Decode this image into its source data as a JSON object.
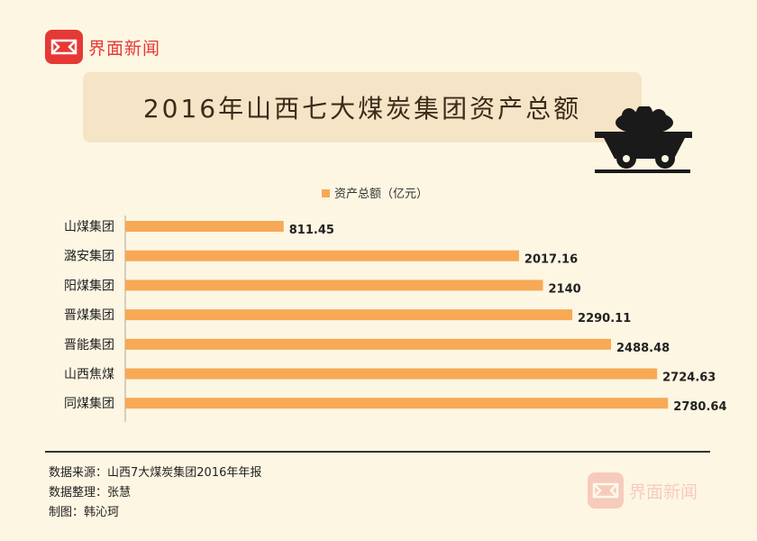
{
  "brand": {
    "name": "界面新闻"
  },
  "colors": {
    "bar": "#f7a955",
    "brand": "#e53935"
  },
  "icons": {
    "logo": "jiemian-logo-icon",
    "cart": "coal-cart-icon"
  },
  "chart_data": {
    "type": "bar",
    "orientation": "horizontal",
    "title": "2016年山西七大煤炭集团资产总额",
    "legend": {
      "label": "资产总额（亿元）",
      "position": "top"
    },
    "categories": [
      "山煤集团",
      "潞安集团",
      "阳煤集团",
      "晋煤集团",
      "晋能集团",
      "山西焦煤",
      "同煤集团"
    ],
    "values": [
      811.45,
      2017.16,
      2140,
      2290.11,
      2488.48,
      2724.63,
      2780.64
    ],
    "data_labels": [
      "811.45",
      "2017.16",
      "2140",
      "2290.11",
      "2488.48",
      "2724.63",
      "2780.64"
    ],
    "xlim": [
      0,
      2850
    ],
    "grid": false
  },
  "footer": {
    "source": "数据来源：山西7大煤炭集团2016年年报",
    "editor": "数据整理：张慧",
    "designer": "制图：韩沁珂"
  }
}
